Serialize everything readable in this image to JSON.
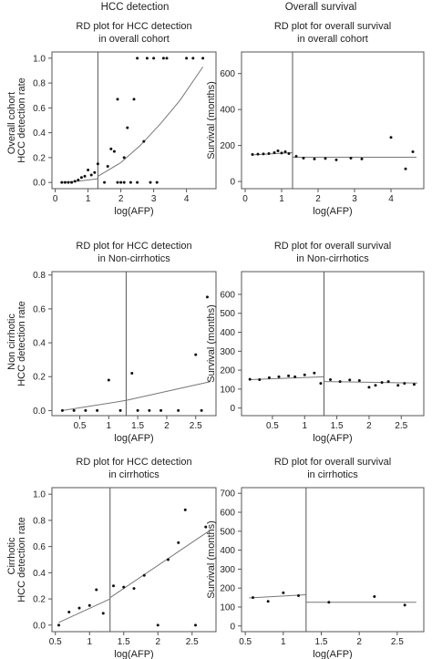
{
  "column_titles": [
    "HCC detection",
    "Overall survival"
  ],
  "row_labels": [
    "Overall cohort",
    "Non cirrhotic",
    "Cirrhotic"
  ],
  "chart_data": [
    {
      "type": "scatter",
      "title": "RD plot for HCC detection\nin overall cohort",
      "xlabel": "log(AFP)",
      "ylabel": "HCC detection rate",
      "xlim": [
        -0.1,
        4.9
      ],
      "ylim": [
        -0.05,
        1.05
      ],
      "xticks": [
        0,
        1,
        2,
        3,
        4
      ],
      "yticks": [
        0.0,
        0.2,
        0.4,
        0.6,
        0.8,
        1.0
      ],
      "ytick_labels": [
        "0.0",
        "0.2",
        "0.4",
        "0.6",
        "0.8",
        "1.0"
      ],
      "cutoff": 1.3,
      "points": [
        [
          0.2,
          0
        ],
        [
          0.3,
          0
        ],
        [
          0.4,
          0
        ],
        [
          0.5,
          0
        ],
        [
          0.6,
          0.01
        ],
        [
          0.7,
          0.02
        ],
        [
          0.8,
          0.04
        ],
        [
          0.9,
          0.05
        ],
        [
          1.0,
          0.1
        ],
        [
          1.1,
          0.06
        ],
        [
          1.2,
          0.08
        ],
        [
          1.3,
          0.15
        ],
        [
          1.5,
          0
        ],
        [
          1.6,
          0.13
        ],
        [
          1.7,
          0.27
        ],
        [
          1.8,
          0.25
        ],
        [
          1.9,
          0.67
        ],
        [
          1.9,
          0
        ],
        [
          2.0,
          0
        ],
        [
          2.1,
          0
        ],
        [
          2.1,
          0.2
        ],
        [
          2.2,
          0.44
        ],
        [
          2.3,
          0
        ],
        [
          2.4,
          0.67
        ],
        [
          2.5,
          1.0
        ],
        [
          2.5,
          0
        ],
        [
          2.7,
          0.33
        ],
        [
          2.8,
          1.0
        ],
        [
          2.9,
          0
        ],
        [
          3.0,
          1.0
        ],
        [
          3.1,
          0
        ],
        [
          3.3,
          1.0
        ],
        [
          3.4,
          1.0
        ],
        [
          4.0,
          1.0
        ],
        [
          4.2,
          1.0
        ],
        [
          4.5,
          1.0
        ]
      ],
      "fit": [
        {
          "name": "left",
          "x": [
            0.2,
            0.7,
            1.3
          ],
          "y": [
            0.0,
            0.01,
            0.03
          ]
        },
        {
          "name": "right",
          "x": [
            1.3,
            2.0,
            2.6,
            3.2,
            3.8,
            4.5
          ],
          "y": [
            0.05,
            0.16,
            0.3,
            0.47,
            0.66,
            0.93
          ]
        }
      ]
    },
    {
      "type": "scatter",
      "title": "RD plot for overall survival\nin overall cohort",
      "xlabel": "log(AFP)",
      "ylabel": "Survival (months)",
      "xlim": [
        -0.1,
        4.9
      ],
      "ylim": [
        -40,
        720
      ],
      "xticks": [
        0,
        1,
        2,
        3,
        4
      ],
      "yticks": [
        0,
        200,
        400,
        600
      ],
      "ytick_labels": [
        "0",
        "200",
        "400",
        "600"
      ],
      "cutoff": 1.3,
      "points": [
        [
          0.2,
          150
        ],
        [
          0.35,
          152
        ],
        [
          0.5,
          153
        ],
        [
          0.65,
          155
        ],
        [
          0.8,
          160
        ],
        [
          0.9,
          170
        ],
        [
          1.0,
          158
        ],
        [
          1.1,
          165
        ],
        [
          1.2,
          155
        ],
        [
          1.4,
          140
        ],
        [
          1.6,
          130
        ],
        [
          1.9,
          125
        ],
        [
          2.2,
          128
        ],
        [
          2.5,
          120
        ],
        [
          2.9,
          130
        ],
        [
          3.2,
          125
        ],
        [
          4.0,
          245
        ],
        [
          4.4,
          70
        ],
        [
          4.6,
          165
        ]
      ],
      "fit": [
        {
          "name": "left",
          "x": [
            0.2,
            1.3
          ],
          "y": [
            148,
            160
          ]
        },
        {
          "name": "right",
          "x": [
            1.3,
            4.7
          ],
          "y": [
            135,
            135
          ]
        }
      ]
    },
    {
      "type": "scatter",
      "title": "RD plot for HCC detection\nin Non-cirrhotics",
      "xlabel": "log(AFP)",
      "ylabel": "HCC detection rate",
      "xlim": [
        0.02,
        2.85
      ],
      "ylim": [
        -0.03,
        0.82
      ],
      "xticks": [
        0.5,
        1.0,
        1.5,
        2.0,
        2.5
      ],
      "yticks": [
        0.0,
        0.2,
        0.4,
        0.6,
        0.8
      ],
      "ytick_labels": [
        "0.0",
        "0.2",
        "0.4",
        "0.6",
        "0.8"
      ],
      "cutoff": 1.3,
      "points": [
        [
          0.2,
          0
        ],
        [
          0.4,
          0
        ],
        [
          0.6,
          0
        ],
        [
          0.8,
          0
        ],
        [
          1.0,
          0.18
        ],
        [
          1.2,
          0
        ],
        [
          1.4,
          0.22
        ],
        [
          1.5,
          0
        ],
        [
          1.7,
          0
        ],
        [
          1.9,
          0
        ],
        [
          2.2,
          0
        ],
        [
          2.5,
          0.33
        ],
        [
          2.6,
          0
        ],
        [
          2.7,
          0.67
        ]
      ],
      "fit": [
        {
          "name": "left",
          "x": [
            0.2,
            1.3
          ],
          "y": [
            0.0,
            0.06
          ]
        },
        {
          "name": "right",
          "x": [
            1.3,
            2.75
          ],
          "y": [
            0.06,
            0.17
          ]
        }
      ]
    },
    {
      "type": "scatter",
      "title": "RD plot for overall survival\nin Non-cirrhotics",
      "xlabel": "log(AFP)",
      "ylabel": "Survival (months)",
      "xlim": [
        0.02,
        2.85
      ],
      "ylim": [
        -40,
        720
      ],
      "xticks": [
        0.5,
        1.0,
        1.5,
        2.0,
        2.5
      ],
      "yticks": [
        0,
        100,
        200,
        300,
        400,
        500,
        600
      ],
      "ytick_labels": [
        "0",
        "100",
        "200",
        "300",
        "400",
        "500",
        "600"
      ],
      "cutoff": 1.3,
      "points": [
        [
          0.15,
          152
        ],
        [
          0.3,
          150
        ],
        [
          0.45,
          160
        ],
        [
          0.6,
          165
        ],
        [
          0.75,
          170
        ],
        [
          0.85,
          165
        ],
        [
          1.0,
          175
        ],
        [
          1.15,
          185
        ],
        [
          1.25,
          130
        ],
        [
          1.4,
          150
        ],
        [
          1.55,
          140
        ],
        [
          1.7,
          148
        ],
        [
          1.85,
          145
        ],
        [
          2.0,
          110
        ],
        [
          2.1,
          120
        ],
        [
          2.2,
          135
        ],
        [
          2.3,
          140
        ],
        [
          2.45,
          120
        ],
        [
          2.55,
          130
        ],
        [
          2.7,
          125
        ]
      ],
      "fit": [
        {
          "name": "left",
          "x": [
            0.15,
            1.3
          ],
          "y": [
            150,
            165
          ]
        },
        {
          "name": "right",
          "x": [
            1.3,
            2.75
          ],
          "y": [
            140,
            132
          ]
        }
      ]
    },
    {
      "type": "scatter",
      "title": "RD plot for HCC detection\nin cirrhotics",
      "xlabel": "log(AFP)",
      "ylabel": "HCC detection rate",
      "xlim": [
        0.45,
        2.85
      ],
      "ylim": [
        -0.05,
        1.05
      ],
      "xticks": [
        0.5,
        1.0,
        1.5,
        2.0,
        2.5
      ],
      "yticks": [
        0.0,
        0.2,
        0.4,
        0.6,
        0.8,
        1.0
      ],
      "ytick_labels": [
        "0.0",
        "0.2",
        "0.4",
        "0.6",
        "0.8",
        "1.0"
      ],
      "cutoff": 1.3,
      "points": [
        [
          0.55,
          0
        ],
        [
          0.7,
          0.1
        ],
        [
          0.85,
          0.13
        ],
        [
          1.0,
          0.15
        ],
        [
          1.1,
          0.27
        ],
        [
          1.2,
          0.09
        ],
        [
          1.35,
          0.3
        ],
        [
          1.5,
          0.29
        ],
        [
          1.65,
          0.28
        ],
        [
          1.8,
          0.38
        ],
        [
          2.0,
          0
        ],
        [
          2.15,
          0.5
        ],
        [
          2.3,
          0.63
        ],
        [
          2.4,
          0.88
        ],
        [
          2.55,
          0
        ],
        [
          2.7,
          0.75
        ]
      ],
      "fit": [
        {
          "name": "left",
          "x": [
            0.55,
            1.3
          ],
          "y": [
            0.02,
            0.2
          ]
        },
        {
          "name": "right",
          "x": [
            1.3,
            2.75
          ],
          "y": [
            0.21,
            0.72
          ]
        }
      ]
    },
    {
      "type": "scatter",
      "title": "RD plot for overall survival\nin cirrhotics",
      "xlabel": "log(AFP)",
      "ylabel": "Survival (months)",
      "xlim": [
        0.45,
        2.85
      ],
      "ylim": [
        -30,
        730
      ],
      "xticks": [
        0.5,
        1.0,
        1.5,
        2.0,
        2.5
      ],
      "yticks": [
        0,
        100,
        200,
        300,
        400,
        500,
        600,
        700
      ],
      "ytick_labels": [
        "0",
        "100",
        "200",
        "300",
        "400",
        "500",
        "600",
        "700"
      ],
      "cutoff": 1.3,
      "points": [
        [
          0.6,
          150
        ],
        [
          0.8,
          130
        ],
        [
          1.0,
          175
        ],
        [
          1.2,
          160
        ],
        [
          1.6,
          125
        ],
        [
          2.2,
          155
        ],
        [
          2.6,
          110
        ]
      ],
      "fit": [
        {
          "name": "left",
          "x": [
            0.55,
            1.3
          ],
          "y": [
            148,
            165
          ]
        },
        {
          "name": "right",
          "x": [
            1.3,
            2.75
          ],
          "y": [
            125,
            125
          ]
        }
      ]
    }
  ]
}
